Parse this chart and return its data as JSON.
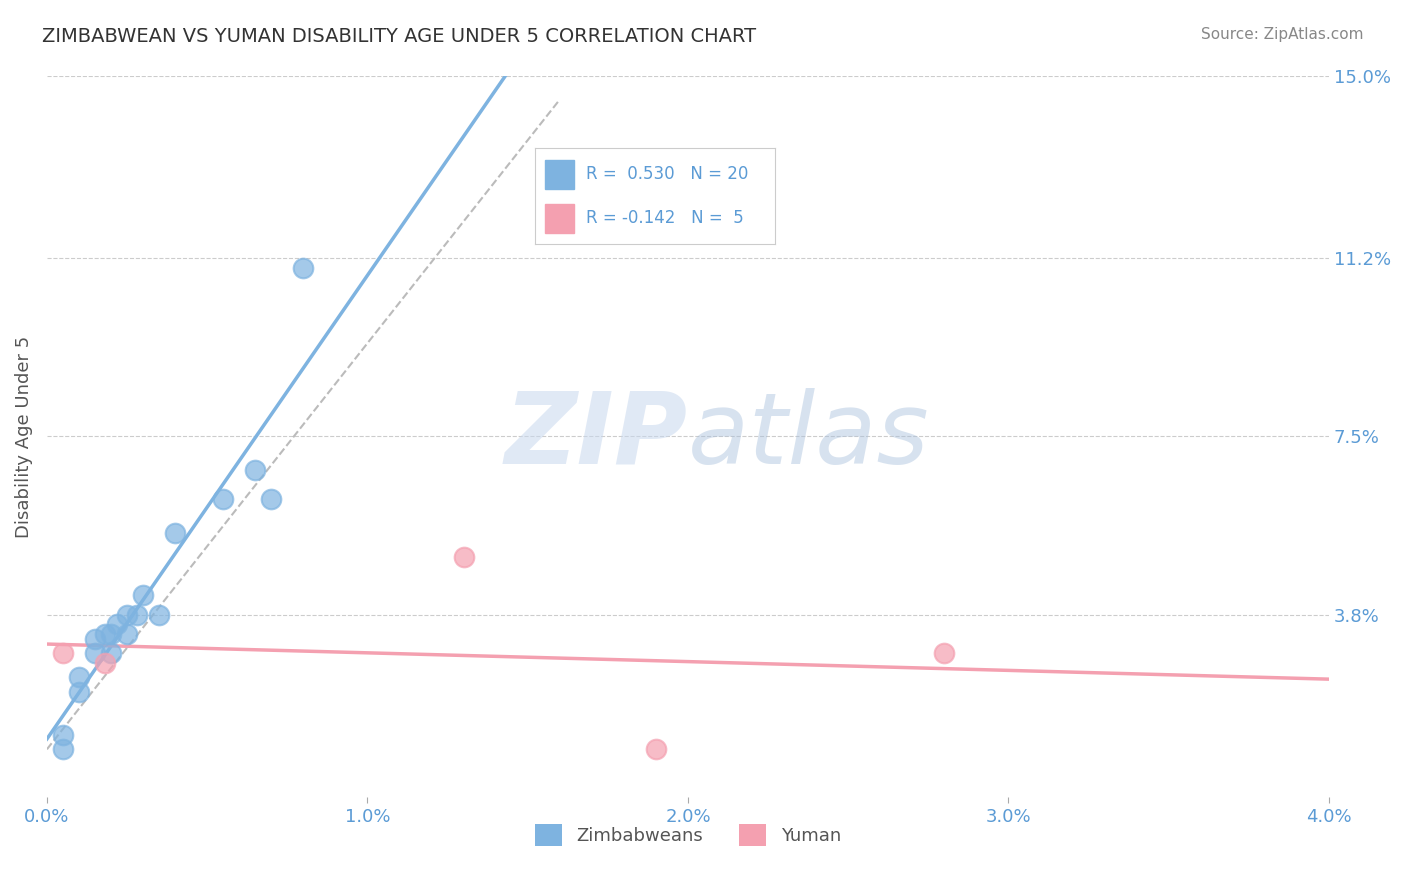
{
  "title": "ZIMBABWEAN VS YUMAN DISABILITY AGE UNDER 5 CORRELATION CHART",
  "source": "Source: ZipAtlas.com",
  "ylabel": "Disability Age Under 5",
  "xlim": [
    0.0,
    0.04
  ],
  "ylim": [
    0.0,
    0.15
  ],
  "xtick_labels": [
    "0.0%",
    "1.0%",
    "2.0%",
    "3.0%",
    "4.0%"
  ],
  "xtick_vals": [
    0.0,
    0.01,
    0.02,
    0.03,
    0.04
  ],
  "ytick_labels": [
    "15.0%",
    "11.2%",
    "7.5%",
    "3.8%"
  ],
  "ytick_vals": [
    0.15,
    0.112,
    0.075,
    0.038
  ],
  "zim_color": "#7EB3E0",
  "yuman_color": "#F4A0B0",
  "zim_R": 0.53,
  "zim_N": 20,
  "yuman_R": -0.142,
  "yuman_N": 5,
  "legend_label_zim": "Zimbabweans",
  "legend_label_yuman": "Yuman",
  "watermark_zip": "ZIP",
  "watermark_atlas": "atlas",
  "zim_scatter_x": [
    0.0005,
    0.0005,
    0.001,
    0.001,
    0.0015,
    0.0015,
    0.0018,
    0.002,
    0.002,
    0.0022,
    0.0025,
    0.0025,
    0.0028,
    0.003,
    0.0035,
    0.004,
    0.0055,
    0.0065,
    0.007,
    0.008
  ],
  "zim_scatter_y": [
    0.01,
    0.013,
    0.022,
    0.025,
    0.03,
    0.033,
    0.034,
    0.03,
    0.034,
    0.036,
    0.034,
    0.038,
    0.038,
    0.042,
    0.038,
    0.055,
    0.062,
    0.068,
    0.062,
    0.11
  ],
  "yuman_scatter_x": [
    0.0005,
    0.0018,
    0.013,
    0.028,
    0.019
  ],
  "yuman_scatter_y": [
    0.03,
    0.028,
    0.05,
    0.03,
    0.01
  ],
  "background_color": "#FFFFFF",
  "grid_color": "#CCCCCC",
  "text_color": "#5B9BD5",
  "title_color": "#333333"
}
